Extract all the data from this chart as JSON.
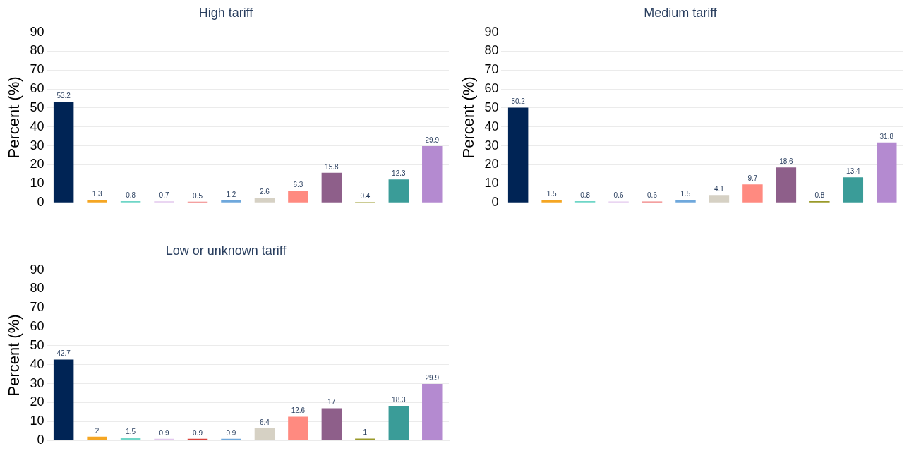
{
  "chart_data": [
    {
      "type": "bar",
      "title": "High tariff",
      "ylabel": "Percent (%)",
      "categories": [
        null,
        null,
        null,
        null,
        null,
        null,
        null,
        null,
        null,
        null,
        null,
        null
      ],
      "values": [
        53.2,
        1.3,
        0.8,
        0.7,
        0.5,
        1.2,
        2.6,
        6.3,
        15.8,
        0.4,
        12.3,
        29.9
      ],
      "colors": [
        "#002455",
        "#f5a623",
        "#6fd6c7",
        "#e3c8ee",
        "#f08080",
        "#6fa8dc",
        "#d6d1c4",
        "#ff8a80",
        "#8e5f8a",
        "#9a9a2a",
        "#3a9c98",
        "#b48ad0"
      ],
      "ylim": [
        0,
        90
      ],
      "yticks": [
        0,
        10,
        20,
        30,
        40,
        50,
        60,
        70,
        80,
        90
      ],
      "grid": "y",
      "tick_labels": "y",
      "data_labels": true
    },
    {
      "type": "bar",
      "title": "Medium tariff",
      "ylabel": "Percent (%)",
      "categories": [
        null,
        null,
        null,
        null,
        null,
        null,
        null,
        null,
        null,
        null,
        null,
        null
      ],
      "values": [
        50.2,
        1.5,
        0.8,
        0.6,
        0.6,
        1.5,
        4.1,
        9.7,
        18.6,
        0.8,
        13.4,
        31.8
      ],
      "colors": [
        "#002455",
        "#f5a623",
        "#6fd6c7",
        "#e3c8ee",
        "#f08080",
        "#6fa8dc",
        "#d6d1c4",
        "#ff8a80",
        "#8e5f8a",
        "#9a9a2a",
        "#3a9c98",
        "#b48ad0"
      ],
      "ylim": [
        0,
        90
      ],
      "yticks": [
        0,
        10,
        20,
        30,
        40,
        50,
        60,
        70,
        80,
        90
      ],
      "grid": "y",
      "tick_labels": "y",
      "data_labels": true
    },
    {
      "type": "bar",
      "title": "Low or unknown tariff",
      "ylabel": "Percent (%)",
      "categories": [
        null,
        null,
        null,
        null,
        null,
        null,
        null,
        null,
        null,
        null,
        null,
        null
      ],
      "values": [
        42.7,
        2,
        1.5,
        0.9,
        0.9,
        0.9,
        6.4,
        12.6,
        17,
        1,
        18.3,
        29.9
      ],
      "colors": [
        "#002455",
        "#f5a623",
        "#6fd6c7",
        "#e3c8ee",
        "#d9413b",
        "#6fa8dc",
        "#d6d1c4",
        "#ff8a80",
        "#8e5f8a",
        "#9a9a2a",
        "#3a9c98",
        "#b48ad0"
      ],
      "ylim": [
        0,
        90
      ],
      "yticks": [
        0,
        10,
        20,
        30,
        40,
        50,
        60,
        70,
        80,
        90
      ],
      "grid": "y",
      "tick_labels": "y",
      "data_labels": true
    }
  ]
}
